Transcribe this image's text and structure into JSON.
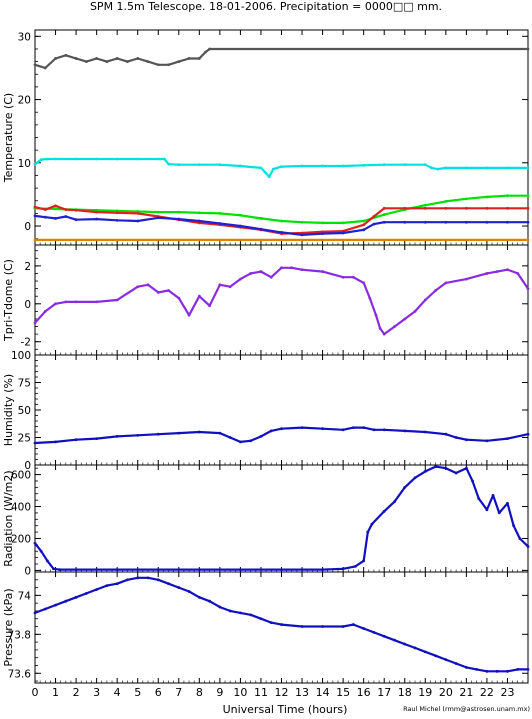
{
  "title": "SPM 1.5m Telescope. 18-01-2006. Precipitation = 0000□□ mm.",
  "xlabel": "Universal Time (hours)",
  "credit": "Raul Michel (rmm@astrosen.unam.mx)",
  "chart_data": [
    {
      "type": "scatter",
      "ylabel": "Temperature (C)",
      "ylim": [
        -3,
        31
      ],
      "yticks": [
        0,
        10,
        20,
        30
      ],
      "xlim": [
        0,
        24
      ],
      "series": [
        {
          "color": "#555555",
          "x": [
            0,
            0.5,
            1,
            1.5,
            2,
            2.5,
            3,
            3.5,
            4,
            4.5,
            5,
            5.5,
            6,
            6.5,
            7,
            7.5,
            8,
            8.3,
            8.5,
            24
          ],
          "y": [
            25.5,
            25,
            26.5,
            27,
            26.5,
            26,
            26.5,
            26,
            26.5,
            26,
            26.5,
            26,
            25.5,
            25.5,
            26,
            26.5,
            26.5,
            27.5,
            28,
            28
          ]
        },
        {
          "color": "#00e0e0",
          "x": [
            0,
            0.3,
            0.6,
            1,
            2,
            3,
            4,
            5,
            6,
            6.3,
            6.5,
            7,
            8,
            9,
            10,
            11,
            11.2,
            11.4,
            11.6,
            12,
            13,
            14,
            15,
            16,
            17,
            18,
            19,
            19.3,
            19.6,
            20,
            21,
            22,
            23,
            24
          ],
          "y": [
            9.8,
            10.5,
            10.6,
            10.6,
            10.6,
            10.6,
            10.6,
            10.6,
            10.6,
            10.6,
            9.8,
            9.7,
            9.7,
            9.7,
            9.5,
            9.2,
            8.5,
            7.8,
            9,
            9.4,
            9.5,
            9.5,
            9.5,
            9.6,
            9.7,
            9.7,
            9.7,
            9.2,
            9.0,
            9.2,
            9.2,
            9.2,
            9.2,
            9.2
          ]
        },
        {
          "color": "#00e000",
          "x": [
            0,
            1,
            2,
            3,
            4,
            5,
            6,
            7,
            8,
            9,
            10,
            11,
            12,
            13,
            14,
            15,
            16,
            17,
            18,
            19,
            20,
            21,
            22,
            23,
            24
          ],
          "y": [
            2.8,
            2.7,
            2.6,
            2.5,
            2.4,
            2.3,
            2.2,
            2.2,
            2.1,
            2.0,
            1.7,
            1.2,
            0.8,
            0.6,
            0.5,
            0.5,
            0.8,
            1.8,
            2.6,
            3.3,
            3.9,
            4.3,
            4.6,
            4.8,
            4.8
          ]
        },
        {
          "color": "#e02020",
          "x": [
            0,
            0.5,
            1,
            1.5,
            2,
            3,
            4,
            5,
            6,
            7,
            8,
            9,
            10,
            11,
            12,
            13,
            14,
            15,
            16,
            16.5,
            17,
            18,
            19,
            20,
            21,
            22,
            23,
            24
          ],
          "y": [
            3,
            2.6,
            3.2,
            2.6,
            2.5,
            2.2,
            2.1,
            2.0,
            1.5,
            1.0,
            0.5,
            0.2,
            -0.2,
            -0.6,
            -1.2,
            -1.1,
            -0.9,
            -0.8,
            0.2,
            1.5,
            2.8,
            2.8,
            2.8,
            2.8,
            2.8,
            2.8,
            2.8,
            2.8
          ]
        },
        {
          "color": "#2020d0",
          "x": [
            0,
            0.5,
            1,
            1.5,
            2,
            3,
            4,
            5,
            6,
            7,
            8,
            9,
            10,
            11,
            12,
            13,
            14,
            15,
            16,
            16.5,
            17,
            18,
            19,
            20,
            21,
            22,
            23,
            24
          ],
          "y": [
            1.6,
            1.4,
            1.2,
            1.5,
            1.0,
            1.1,
            0.9,
            0.8,
            1.3,
            1.1,
            0.8,
            0.4,
            0,
            -0.5,
            -1.0,
            -1.4,
            -1.2,
            -1.1,
            -0.6,
            0.3,
            0.6,
            0.6,
            0.6,
            0.6,
            0.6,
            0.6,
            0.6,
            0.6
          ]
        },
        {
          "color": "#e08000",
          "x": [
            0,
            24
          ],
          "y": [
            -2.2,
            -2.2
          ]
        }
      ]
    },
    {
      "type": "scatter",
      "ylabel": "Tpri-Tdome (C)",
      "ylim": [
        -2.7,
        3.1
      ],
      "yticks": [
        -2,
        0,
        2
      ],
      "xlim": [
        0,
        24
      ],
      "series": [
        {
          "color": "#8a2be2",
          "x": [
            0,
            0.5,
            1,
            1.5,
            2,
            3,
            4,
            5,
            5.5,
            6,
            6.5,
            7,
            7.5,
            8,
            8.5,
            9,
            9.5,
            10,
            10.5,
            11,
            11.5,
            12,
            12.5,
            13,
            14,
            15,
            15.5,
            16,
            16.3,
            16.6,
            16.8,
            17,
            17.5,
            18,
            18.5,
            19,
            19.5,
            20,
            21,
            22,
            22.5,
            23,
            23.5,
            24
          ],
          "y": [
            -1.0,
            -0.4,
            0.0,
            0.1,
            0.1,
            0.1,
            0.2,
            0.9,
            1.0,
            0.6,
            0.7,
            0.3,
            -0.6,
            0.4,
            -0.1,
            1.0,
            0.9,
            1.3,
            1.6,
            1.7,
            1.4,
            1.9,
            1.9,
            1.8,
            1.7,
            1.4,
            1.4,
            1.1,
            0.3,
            -0.6,
            -1.3,
            -1.6,
            -1.2,
            -0.8,
            -0.4,
            0.2,
            0.7,
            1.1,
            1.3,
            1.6,
            1.7,
            1.8,
            1.6,
            0.8
          ]
        }
      ]
    },
    {
      "type": "scatter",
      "ylabel": "Humidity (%)",
      "ylim": [
        0,
        100
      ],
      "yticks": [
        0,
        25,
        50,
        75,
        100
      ],
      "xlim": [
        0,
        24
      ],
      "series": [
        {
          "color": "#1010c0",
          "x": [
            0,
            1,
            2,
            3,
            4,
            5,
            6,
            7,
            8,
            9,
            9.5,
            10,
            10.5,
            11,
            11.5,
            12,
            13,
            14,
            15,
            15.5,
            16,
            16.5,
            17,
            18,
            19,
            20,
            20.5,
            21,
            22,
            23,
            24
          ],
          "y": [
            20,
            21,
            23,
            24,
            26,
            27,
            28,
            29,
            30,
            29,
            25,
            21,
            22,
            26,
            31,
            33,
            34,
            33,
            32,
            34,
            34,
            32,
            32,
            31,
            30,
            28,
            25,
            23,
            22,
            24,
            28
          ]
        }
      ]
    },
    {
      "type": "scatter",
      "ylabel": "Radiation (W/m2)",
      "ylim": [
        -10,
        660
      ],
      "yticks": [
        0,
        200,
        400,
        600
      ],
      "xlim": [
        0,
        24
      ],
      "series": [
        {
          "color": "#1010c0",
          "x": [
            0,
            0.3,
            0.6,
            0.9,
            1.2,
            2,
            4,
            6,
            8,
            10,
            12,
            14,
            15,
            15.6,
            16,
            16.2,
            16.4,
            17,
            17.5,
            18,
            18.5,
            19,
            19.5,
            20,
            20.5,
            21,
            21.3,
            21.6,
            22,
            22.3,
            22.6,
            23,
            23.3,
            23.6,
            24
          ],
          "y": [
            170,
            120,
            60,
            10,
            5,
            5,
            5,
            5,
            5,
            5,
            5,
            5,
            10,
            25,
            60,
            240,
            290,
            370,
            430,
            520,
            580,
            620,
            650,
            640,
            610,
            640,
            560,
            450,
            380,
            470,
            360,
            420,
            280,
            200,
            150
          ]
        }
      ]
    },
    {
      "type": "scatter",
      "ylabel": "Pressure (kPa)",
      "ylim": [
        73.55,
        74.12
      ],
      "yticks": [
        73.6,
        73.8,
        74
      ],
      "ytick_labels": [
        "73.6",
        "73.8",
        "74"
      ],
      "xlim": [
        0,
        24
      ],
      "series": [
        {
          "color": "#1010c0",
          "x": [
            0,
            0.5,
            1,
            1.5,
            2,
            2.5,
            3,
            3.5,
            4,
            4.5,
            5,
            5.5,
            6,
            6.5,
            7,
            7.5,
            8,
            8.5,
            9,
            9.5,
            10,
            10.5,
            11,
            11.5,
            12,
            13,
            14,
            15,
            15.5,
            16,
            16.5,
            17,
            17.5,
            18,
            18.5,
            19,
            19.5,
            20,
            20.5,
            21,
            21.5,
            22,
            22.5,
            23,
            23.5,
            24
          ],
          "y": [
            73.91,
            73.93,
            73.95,
            73.97,
            73.99,
            74.01,
            74.03,
            74.05,
            74.06,
            74.08,
            74.09,
            74.09,
            74.08,
            74.06,
            74.04,
            74.02,
            73.99,
            73.97,
            73.94,
            73.92,
            73.91,
            73.9,
            73.88,
            73.86,
            73.85,
            73.84,
            73.84,
            73.84,
            73.85,
            73.83,
            73.81,
            73.79,
            73.77,
            73.75,
            73.73,
            73.71,
            73.69,
            73.67,
            73.65,
            73.63,
            73.62,
            73.61,
            73.61,
            73.61,
            73.62,
            73.62
          ]
        }
      ]
    }
  ]
}
